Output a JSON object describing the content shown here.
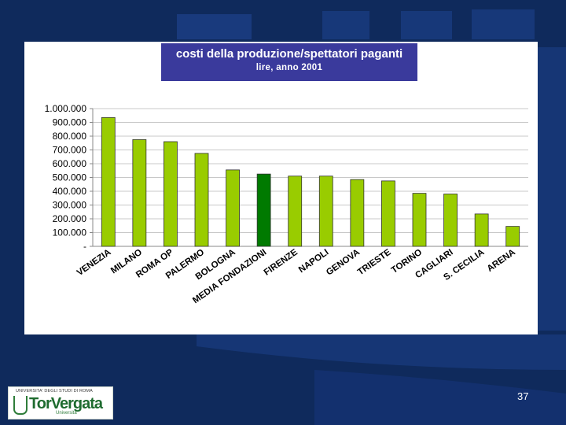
{
  "slide": {
    "number": "37"
  },
  "logo": {
    "caption": "UNIVERSITA' DEGLI STUDI DI ROMA",
    "word": "TorVergata",
    "sub": "Università"
  },
  "colors": {
    "bar": "#99cc00",
    "highlight": "#007a00",
    "titleBg": "#3a3a9c",
    "background": "#0f2a5c"
  },
  "chart_data": {
    "type": "bar",
    "title": "costi della produzione/spettatori paganti",
    "subtitle": "lire, anno 2001",
    "categories": [
      "VENEZIA",
      "MILANO",
      "ROMA OP",
      "PALERMO",
      "BOLOGNA",
      "MEDIA FONDAZIONI",
      "FIRENZE",
      "NAPOLI",
      "GENOVA",
      "TRIESTE",
      "TORINO",
      "CAGLIARI",
      "S. CECILIA",
      "ARENA"
    ],
    "values": [
      935000,
      775000,
      760000,
      675000,
      555000,
      525000,
      510000,
      510000,
      485000,
      475000,
      385000,
      380000,
      235000,
      145000
    ],
    "highlight_category": "MEDIA FONDAZIONI",
    "ylim": [
      0,
      1000000
    ],
    "yticks": [
      0,
      100000,
      200000,
      300000,
      400000,
      500000,
      600000,
      700000,
      800000,
      900000,
      1000000
    ],
    "ytick_labels": [
      "-",
      "100.000",
      "200.000",
      "300.000",
      "400.000",
      "500.000",
      "600.000",
      "700.000",
      "800.000",
      "900.000",
      "1.000.000"
    ],
    "grid": true,
    "legend": "none"
  }
}
